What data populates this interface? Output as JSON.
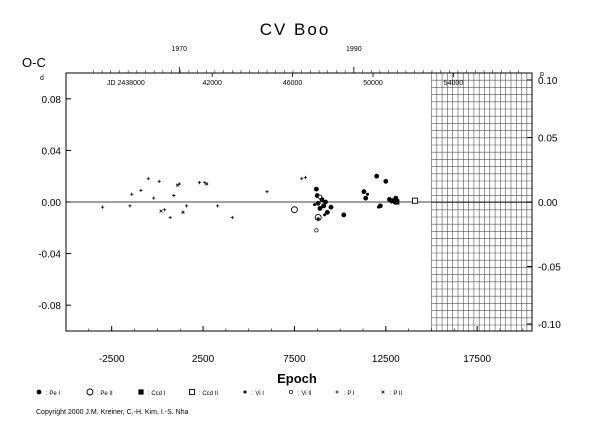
{
  "chart_data": {
    "type": "scatter",
    "title": "CV Boo",
    "xlabel": "Epoch",
    "ylabel": "O-C",
    "y_unit_left": "d",
    "y_unit_right": "p",
    "xlim": [
      -5000,
      20500
    ],
    "ylim": [
      -0.1,
      0.1
    ],
    "x_ticks": [
      -2500,
      2500,
      7500,
      12500,
      17500
    ],
    "x_tick_labels": [
      "-2500",
      "2500",
      "7500",
      "12500",
      "17500"
    ],
    "y_ticks_left": [
      0.08,
      0.04,
      0.0,
      -0.04,
      -0.08
    ],
    "y_tick_labels_left": [
      "0.08",
      "0.04",
      "0.00",
      "-0.04",
      "-0.08"
    ],
    "y_ticks_right": [
      0.1,
      0.05,
      0.0,
      -0.05,
      -0.1
    ],
    "y_tick_labels_right": [
      "0.10",
      "0.05",
      "0.00",
      "-0.05",
      "-0.10"
    ],
    "top_axis_jd": {
      "label": "JD 2438000",
      "ticks": [
        {
          "epoch": 3000,
          "label": "42000"
        },
        {
          "epoch": 7400,
          "label": "46000"
        },
        {
          "epoch": 11800,
          "label": "50000"
        },
        {
          "epoch": 16200,
          "label": "54000"
        }
      ]
    },
    "top_axis_years": {
      "ticks": [
        {
          "epoch": 1200,
          "label": "1970"
        },
        {
          "epoch": 10750,
          "label": "1990"
        }
      ]
    },
    "zero_line": true,
    "grid_region": {
      "x_start": 15000,
      "x_end": 20500
    },
    "legend": [
      "Pe I",
      "Pe II",
      "Ccd I",
      "Ccd II",
      "Vi I",
      "Vi II",
      "P I",
      "P II"
    ],
    "series": [
      {
        "name": "Pe I",
        "marker": "filled-circle",
        "x": [
          8700,
          8750,
          8800,
          8900,
          9000,
          9100,
          9200,
          9300,
          9500,
          10200,
          11300,
          11400,
          12000,
          12200,
          12500,
          12700,
          12900,
          13000,
          13050,
          13100
        ],
        "y": [
          0.01,
          0.005,
          -0.001,
          -0.005,
          0.002,
          -0.003,
          0.0,
          -0.008,
          -0.004,
          -0.01,
          0.008,
          0.003,
          0.02,
          -0.003,
          0.016,
          0.002,
          0.001,
          0.0,
          0.003,
          0.001
        ]
      },
      {
        "name": "Pe II",
        "marker": "open-circle",
        "x": [
          7500,
          8800
        ],
        "y": [
          -0.006,
          -0.012
        ]
      },
      {
        "name": "Ccd I",
        "marker": "filled-square",
        "x": [
          13100
        ],
        "y": [
          0.0
        ]
      },
      {
        "name": "Ccd II",
        "marker": "open-square",
        "x": [
          14100
        ],
        "y": [
          0.001
        ]
      },
      {
        "name": "Vi I",
        "marker": "small-filled-circle",
        "x": [
          8600,
          8800,
          9000,
          9150,
          11500,
          12100,
          12800
        ],
        "y": [
          -0.002,
          -0.013,
          0.003,
          -0.01,
          0.006,
          -0.004,
          0.0
        ]
      },
      {
        "name": "Vi II",
        "marker": "small-open-circle",
        "x": [
          8700,
          8900
        ],
        "y": [
          -0.022,
          0.004
        ]
      },
      {
        "name": "P I",
        "marker": "plus",
        "x": [
          -3000,
          -1500,
          -1400,
          -900,
          -500,
          -200,
          100,
          400,
          700,
          900,
          1200,
          1600,
          2300,
          2600,
          3300,
          4100,
          6000,
          7900,
          8100
        ],
        "y": [
          -0.004,
          -0.003,
          0.006,
          0.009,
          0.018,
          0.003,
          0.016,
          -0.006,
          -0.012,
          0.005,
          0.014,
          -0.003,
          0.015,
          0.015,
          -0.003,
          -0.012,
          0.008,
          0.018,
          0.019
        ]
      },
      {
        "name": "P II",
        "marker": "x",
        "x": [
          200,
          1100,
          1400,
          2700
        ],
        "y": [
          -0.007,
          0.013,
          -0.008,
          0.014
        ]
      }
    ],
    "copyright": "Copyright 2000 J.M. Kreiner, C.-H. Kim, I.-S. Nha"
  }
}
